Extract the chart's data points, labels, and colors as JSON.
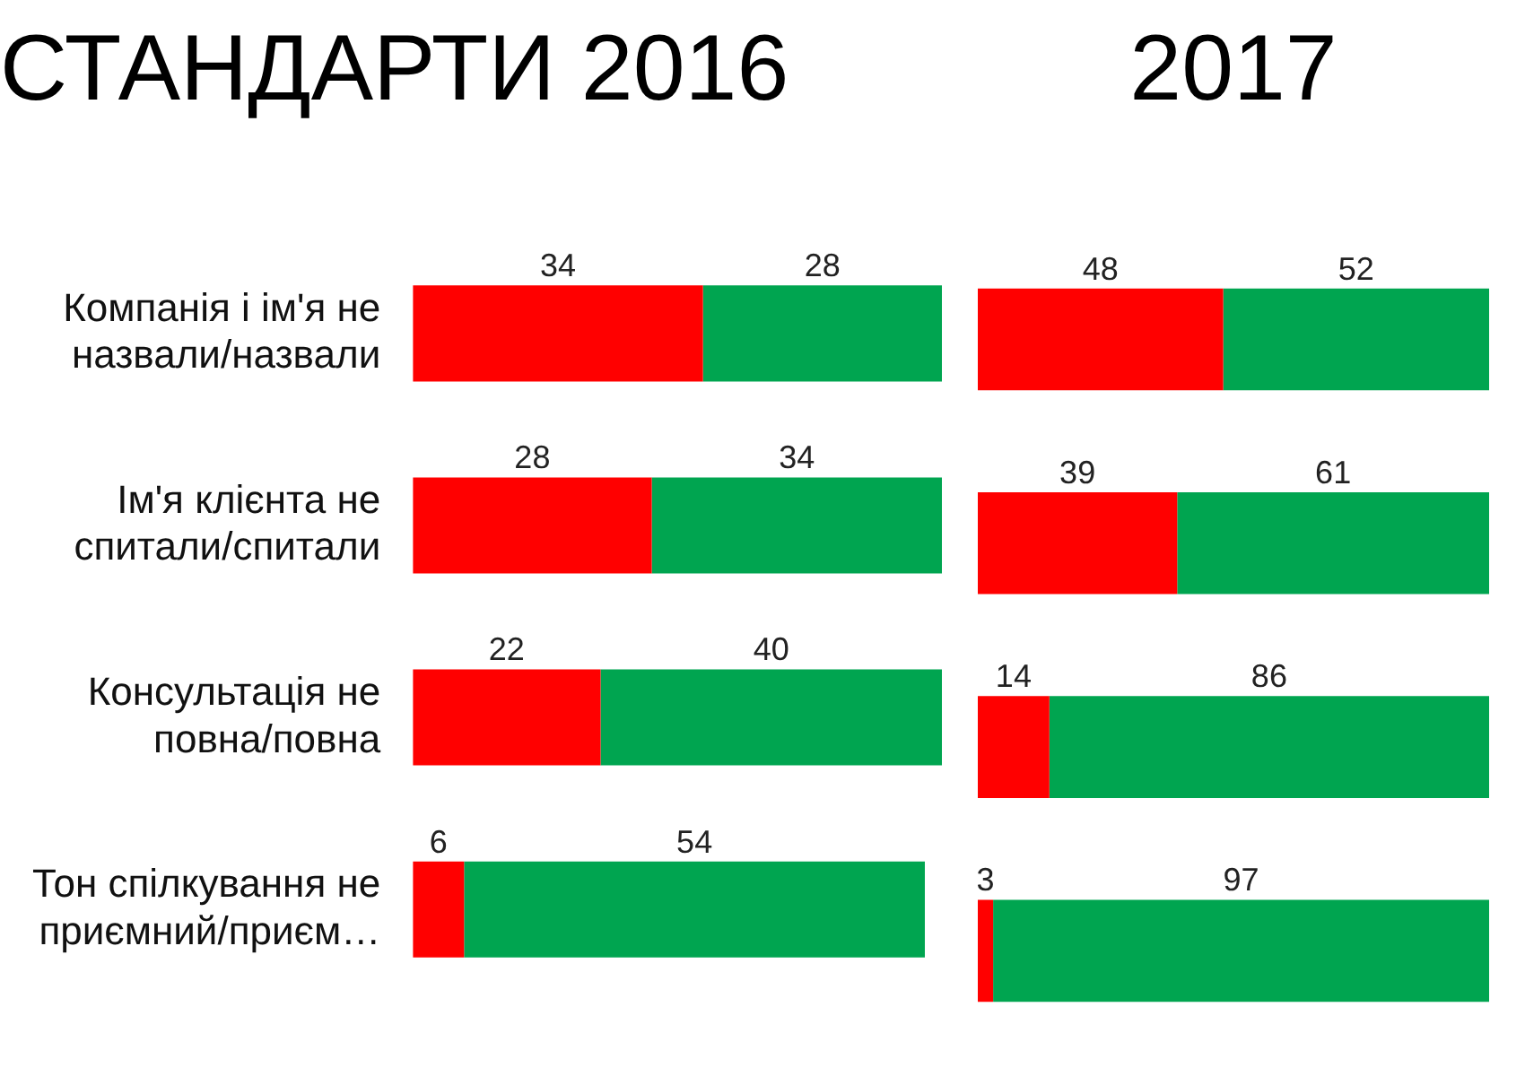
{
  "chart_data": [
    {
      "type": "bar",
      "title": "СТАНДАРТИ 2016",
      "orientation": "horizontal",
      "stacked": true,
      "data_labels": true,
      "tick_labels": "y",
      "grid": false,
      "legend": false,
      "categories": [
        "Компанія і ім'я не назвали/назвали",
        "Ім'я клієнта не спитали/спитали",
        "Консультація не повна/повна",
        "Тон спілкування не приємний/приєм…"
      ],
      "series": [
        {
          "color": "#ff0000",
          "values": [
            34,
            28,
            22,
            6
          ]
        },
        {
          "color": "#00a550",
          "values": [
            28,
            34,
            40,
            54
          ]
        }
      ]
    },
    {
      "type": "bar",
      "title": "2017",
      "orientation": "horizontal",
      "stacked": true,
      "data_labels": true,
      "tick_labels": false,
      "grid": false,
      "legend": false,
      "categories": [
        null,
        null,
        null,
        null
      ],
      "series": [
        {
          "color": "#ff0000",
          "values": [
            48,
            39,
            14,
            3
          ]
        },
        {
          "color": "#00a550",
          "values": [
            52,
            61,
            86,
            97
          ]
        }
      ]
    }
  ]
}
